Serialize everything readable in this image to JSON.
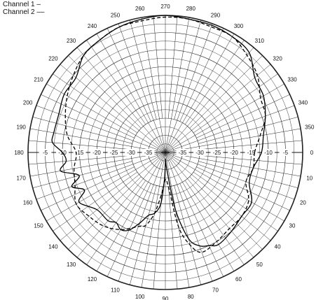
{
  "legend": {
    "channel1": "Channel 1 –",
    "channel2": "Channel 2 ––"
  },
  "chart_data": {
    "type": "polar-line",
    "rlim": [
      -40,
      0
    ],
    "radial_ticks": [
      "-5",
      "-10",
      "-15",
      "-20",
      "-25",
      "-30",
      "-35"
    ],
    "radial_tick_values": [
      -5,
      -10,
      -15,
      -20,
      -25,
      -30,
      -35
    ],
    "angle_ticks": [
      "0",
      "10",
      "20",
      "30",
      "40",
      "50",
      "60",
      "70",
      "80",
      "90",
      "100",
      "110",
      "120",
      "130",
      "140",
      "150",
      "160",
      "170",
      "180",
      "190",
      "200",
      "210",
      "220",
      "230",
      "240",
      "250",
      "260",
      "270",
      "280",
      "290",
      "300",
      "310",
      "320",
      "330",
      "340",
      "350"
    ],
    "angle_direction": "clockwise from right",
    "grid": true,
    "legend_position": "top-left",
    "series": [
      {
        "name": "Channel 1",
        "line_style": "solid",
        "angles": [
          0,
          10,
          20,
          30,
          40,
          50,
          60,
          65,
          70,
          75,
          80,
          85,
          88,
          90,
          92,
          95,
          100,
          105,
          110,
          115,
          120,
          125,
          130,
          140,
          150,
          155,
          160,
          165,
          170,
          175,
          180,
          185,
          190,
          200,
          210,
          220,
          230,
          240,
          250,
          260,
          270,
          280,
          290,
          300,
          310,
          320,
          330,
          340,
          350
        ],
        "values": [
          -12,
          -14,
          -14,
          -11,
          -11,
          -10,
          -9,
          -10,
          -11,
          -14,
          -23,
          -35,
          -38,
          -37,
          -32,
          -25,
          -22,
          -21,
          -18,
          -15,
          -14,
          -15,
          -14,
          -14,
          -11,
          -14,
          -11,
          -14,
          -9,
          -11,
          -10,
          -7,
          -7,
          -7,
          -6,
          -6,
          -3,
          -2,
          -1,
          -0.5,
          0,
          -0.5,
          -0.5,
          -1,
          -2,
          -6,
          -7,
          -9,
          -11
        ]
      },
      {
        "name": "Channel 2",
        "line_style": "dashed",
        "angles": [
          0,
          10,
          20,
          30,
          40,
          50,
          60,
          70,
          75,
          80,
          85,
          90,
          95,
          100,
          105,
          110,
          120,
          130,
          140,
          150,
          160,
          170,
          180,
          190,
          200,
          210,
          220,
          230,
          240,
          250,
          260,
          270,
          280,
          290,
          300,
          310,
          320,
          330,
          340,
          350
        ],
        "values": [
          -14,
          -14,
          -15,
          -12,
          -11,
          -11,
          -10,
          -9,
          -12,
          -18,
          -30,
          -32,
          -28,
          -22,
          -18,
          -17,
          -14,
          -12,
          -11,
          -10,
          -12,
          -13,
          -14,
          -11,
          -9,
          -7,
          -5,
          -3,
          -2,
          -1,
          -1,
          -0.5,
          -0.5,
          -1,
          -1,
          -3,
          -5,
          -8,
          -9,
          -12
        ]
      }
    ]
  }
}
